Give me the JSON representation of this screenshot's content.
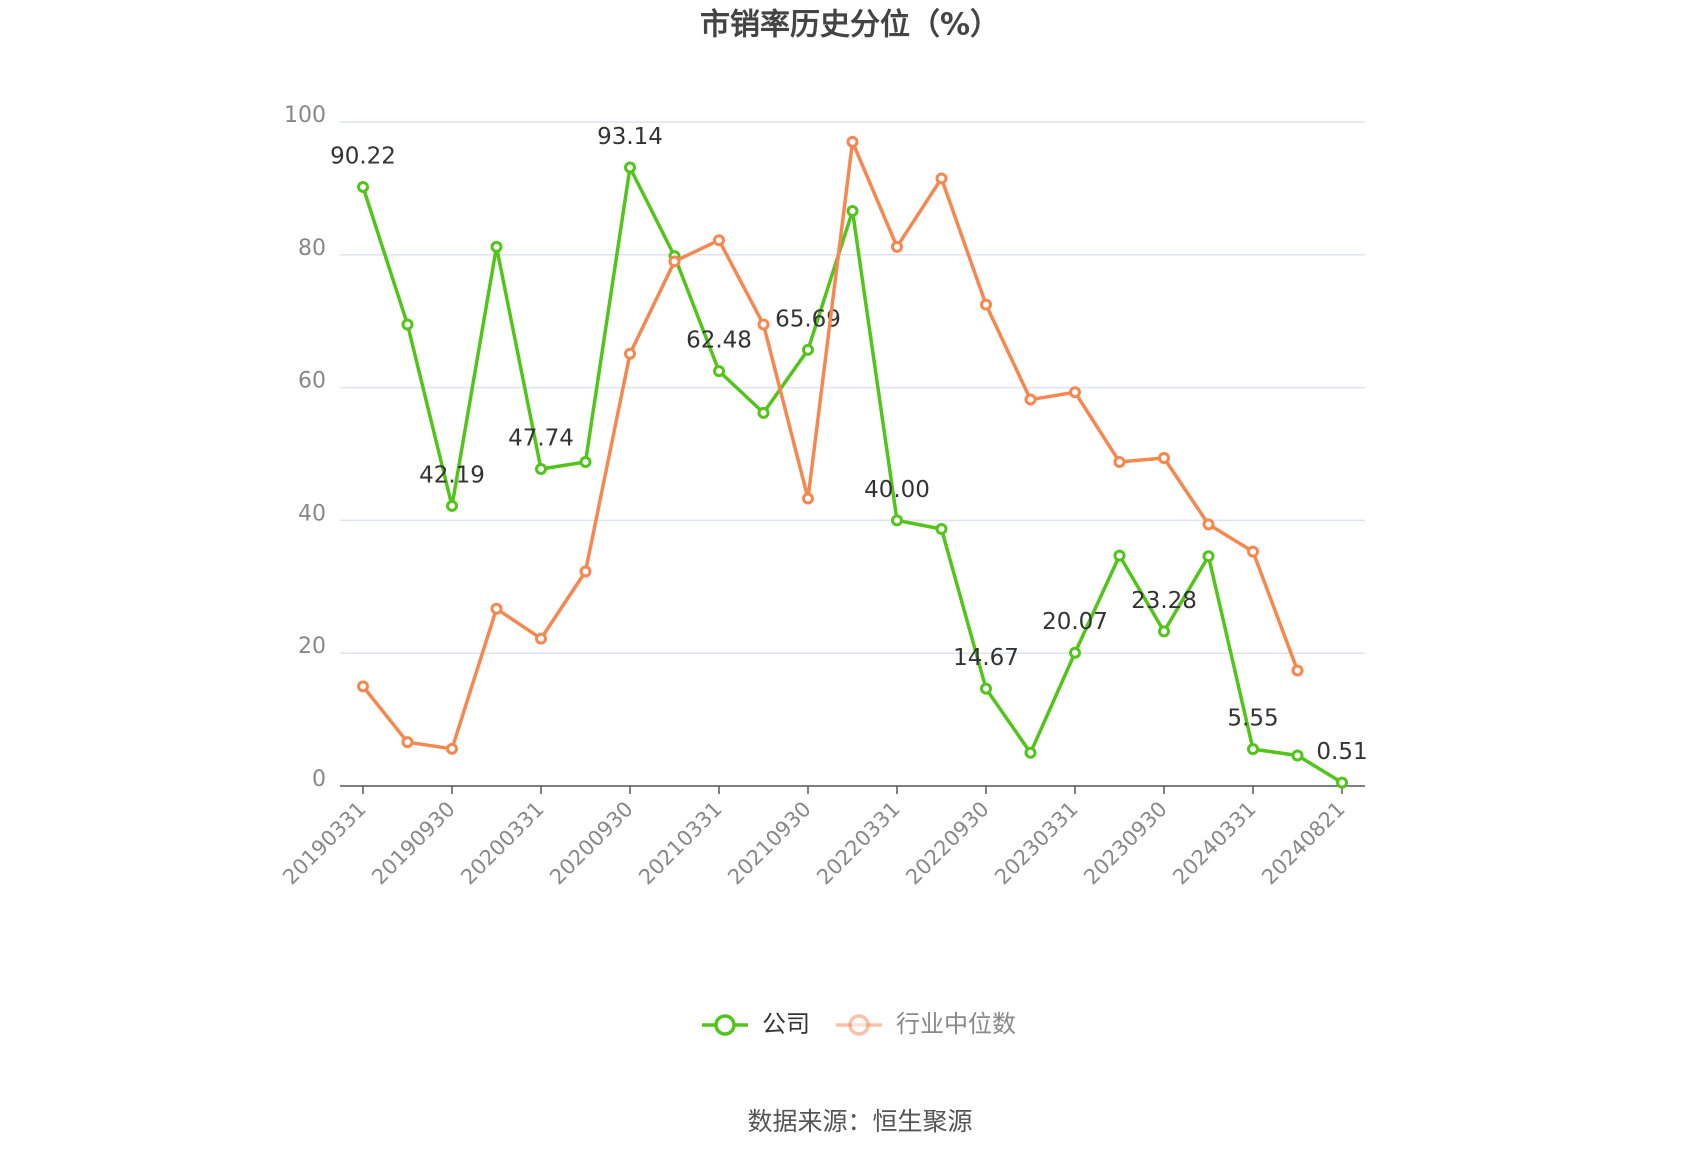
{
  "chart_data": {
    "type": "line",
    "title": "市销率历史分位（%）",
    "categories": [
      "20190331",
      null,
      "20190930",
      null,
      "20200331",
      null,
      "20200930",
      null,
      "20210331",
      null,
      "20210930",
      null,
      "20220331",
      null,
      "20220930",
      null,
      "20230331",
      null,
      "20230930",
      null,
      "20240331",
      null,
      "20240821"
    ],
    "series": [
      {
        "name": "公司",
        "color": "#52c41a",
        "values": [
          90.22,
          69.5,
          42.19,
          81.2,
          47.74,
          48.8,
          93.14,
          79.8,
          62.48,
          56.2,
          65.69,
          86.6,
          40.0,
          38.7,
          14.67,
          5.0,
          20.07,
          34.7,
          23.28,
          34.6,
          5.55,
          4.6,
          0.51
        ],
        "value_labels": [
          "90.22",
          null,
          "42.19",
          null,
          "47.74",
          null,
          "93.14",
          null,
          "62.48",
          null,
          "65.69",
          null,
          "40.00",
          null,
          "14.67",
          null,
          "20.07",
          null,
          "23.28",
          null,
          "5.55",
          null,
          "0.51"
        ]
      },
      {
        "name": "行业中位数",
        "color": "#f5874f",
        "values": [
          15.0,
          6.6,
          5.6,
          26.7,
          22.2,
          32.3,
          65.1,
          79.0,
          82.2,
          69.5,
          43.3,
          97.0,
          81.2,
          91.5,
          72.5,
          58.2,
          59.3,
          48.8,
          49.4,
          39.4,
          35.3,
          17.4,
          null
        ]
      }
    ],
    "ylim": [
      0,
      100
    ],
    "yticks": [
      0,
      20,
      40,
      60,
      80,
      100
    ],
    "grid": true,
    "legend": "bottom",
    "source": "数据来源：恒生聚源"
  }
}
